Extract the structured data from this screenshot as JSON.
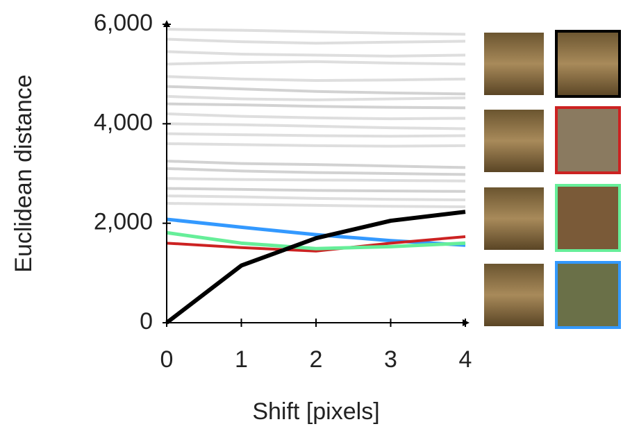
{
  "chart_data": {
    "type": "line",
    "x_label": "Shift [pixels]",
    "y_label": "Euclidean distance",
    "x": [
      0,
      1,
      2,
      3,
      4
    ],
    "xlim": [
      0,
      4
    ],
    "xticks": [
      0,
      1,
      2,
      3,
      4
    ],
    "ylim": [
      0,
      6000
    ],
    "yticks": [
      0,
      {
        "value": 2000,
        "label": "2,000"
      },
      {
        "value": 4000,
        "label": "4,000"
      },
      {
        "value": 6000,
        "label": "6,000"
      }
    ],
    "grid": false,
    "series": [
      {
        "color": "#c8c8c8",
        "values": [
          5900,
          5880,
          5850,
          5820,
          5800
        ]
      },
      {
        "color": "#c8c8c8",
        "values": [
          5700,
          5650,
          5620,
          5640,
          5660
        ]
      },
      {
        "color": "#c8c8c8",
        "values": [
          5450,
          5400,
          5380,
          5360,
          5380
        ]
      },
      {
        "color": "#c8c8c8",
        "values": [
          5200,
          5230,
          5250,
          5220,
          5200
        ]
      },
      {
        "color": "#c8c8c8",
        "values": [
          4950,
          4900,
          4870,
          4880,
          4900
        ]
      },
      {
        "color": "#b4b4b4",
        "values": [
          4750,
          4700,
          4650,
          4620,
          4600
        ]
      },
      {
        "color": "#c8c8c8",
        "values": [
          4550,
          4500,
          4480,
          4500,
          4520
        ]
      },
      {
        "color": "#b4b4b4",
        "values": [
          4400,
          4380,
          4350,
          4330,
          4320
        ]
      },
      {
        "color": "#c8c8c8",
        "values": [
          4200,
          4150,
          4120,
          4100,
          4110
        ]
      },
      {
        "color": "#c8c8c8",
        "values": [
          4000,
          3980,
          3950,
          3920,
          3900
        ]
      },
      {
        "color": "#c8c8c8",
        "values": [
          3800,
          3780,
          3760,
          3750,
          3760
        ]
      },
      {
        "color": "#c8c8c8",
        "values": [
          3600,
          3580,
          3560,
          3550,
          3560
        ]
      },
      {
        "color": "#b4b4b4",
        "values": [
          3250,
          3200,
          3180,
          3150,
          3120
        ]
      },
      {
        "color": "#b4b4b4",
        "values": [
          3100,
          3050,
          3020,
          3000,
          2980
        ]
      },
      {
        "color": "#c8c8c8",
        "values": [
          2900,
          2880,
          2870,
          2860,
          2850
        ]
      },
      {
        "color": "#b4b4b4",
        "values": [
          2700,
          2680,
          2660,
          2650,
          2640
        ]
      },
      {
        "color": "#c8c8c8",
        "values": [
          2550,
          2530,
          2500,
          2480,
          2470
        ]
      },
      {
        "color": "#c8c8c8",
        "values": [
          2400,
          2380,
          2360,
          2340,
          2330
        ]
      },
      {
        "color": "#3399ff",
        "values": [
          2080,
          1920,
          1770,
          1650,
          1560
        ]
      },
      {
        "color": "#cc2222",
        "values": [
          1600,
          1510,
          1440,
          1600,
          1730
        ]
      },
      {
        "color": "#66ee99",
        "values": [
          1810,
          1600,
          1490,
          1530,
          1600
        ]
      },
      {
        "color": "#000000",
        "values": [
          0,
          1150,
          1700,
          2050,
          2230
        ]
      }
    ]
  }
}
